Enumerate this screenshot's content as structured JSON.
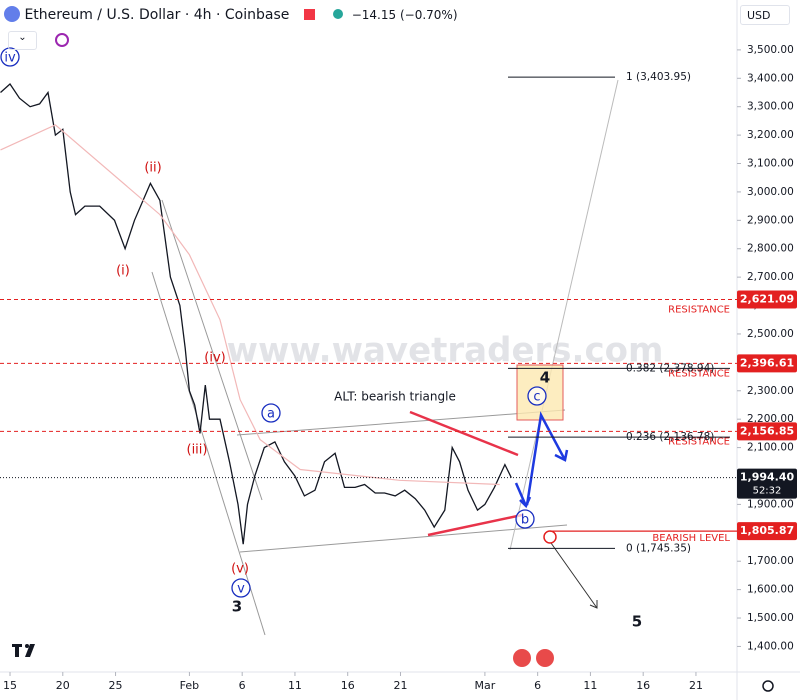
{
  "header": {
    "symbol": "Ethereum / U.S. Dollar · 4h · Coinbase",
    "change": "−14.15 (−0.70%)",
    "currency": "USD"
  },
  "watermark": "www.wavetraders.com",
  "chart_data": {
    "type": "line",
    "series": [
      {
        "color": "#131722",
        "x": [
          -0.9,
          0,
          0.9,
          1.9,
          2.8,
          3.6,
          4.3,
          5,
          5.7,
          6.2,
          7.1,
          8.5,
          9.9,
          10.9,
          11.8,
          13.3,
          14.2,
          15.2,
          16.1,
          16.6,
          17,
          17.5,
          18,
          18.5,
          18.9,
          19.9,
          20.8,
          21.6,
          22.1,
          22.5,
          23.2,
          24.1,
          25.1,
          26,
          27,
          27.9,
          28.9,
          29.8,
          30.8,
          31.7,
          32.7,
          33.6,
          34.6,
          35.5,
          36.5,
          37.4,
          38.4,
          39.3,
          40.2,
          41.2,
          41.9,
          42.6,
          43.4,
          44.3,
          45,
          45.9,
          46.9,
          47.5
        ],
        "values": [
          3350,
          3380,
          3330,
          3300,
          3310,
          3350,
          3200,
          3220,
          3000,
          2920,
          2950,
          2950,
          2900,
          2800,
          2900,
          3030,
          2970,
          2700,
          2600,
          2450,
          2300,
          2250,
          2150,
          2320,
          2200,
          2200,
          2050,
          1900,
          1760,
          1900,
          2000,
          2100,
          2120,
          2050,
          2000,
          1930,
          1950,
          2050,
          2080,
          1960,
          1960,
          1970,
          1940,
          1940,
          1930,
          1950,
          1920,
          1880,
          1820,
          1880,
          2100,
          2050,
          1950,
          1880,
          1900,
          1960,
          2040,
          1994.4
        ]
      },
      {
        "color": "#f2b8b8",
        "x": [
          -0.9,
          4.3,
          14.2,
          17,
          19.9,
          21.8,
          23.7,
          27.5,
          36.9,
          46.4
        ],
        "values": [
          3148,
          3236,
          2920,
          2779,
          2550,
          2269,
          2128,
          2023,
          1985,
          1970
        ]
      }
    ],
    "xlim": [
      -0.95,
      68.7
    ],
    "ylim": [
      1310,
      3570
    ],
    "xticks": [
      {
        "value": 0,
        "label": "15"
      },
      {
        "value": 5,
        "label": "20"
      },
      {
        "value": 10,
        "label": "25"
      },
      {
        "value": 17,
        "label": "Feb"
      },
      {
        "value": 22,
        "label": "6"
      },
      {
        "value": 27,
        "label": "11"
      },
      {
        "value": 32,
        "label": "16"
      },
      {
        "value": 37,
        "label": "21"
      },
      {
        "value": 45,
        "label": "Mar"
      },
      {
        "value": 50,
        "label": "6"
      },
      {
        "value": 55,
        "label": "11"
      },
      {
        "value": 60,
        "label": "16"
      },
      {
        "value": 65,
        "label": "21"
      }
    ],
    "yticks": [
      {
        "value": 1400,
        "label": "1,400.00"
      },
      {
        "value": 1500,
        "label": "1,500.00"
      },
      {
        "value": 1600,
        "label": "1,600.00"
      },
      {
        "value": 1700,
        "label": "1,700.00"
      },
      {
        "value": 1800,
        "label": "1,800.00"
      },
      {
        "value": 1900,
        "label": "1,900.00"
      },
      {
        "value": 2000,
        "label": "2,000.00"
      },
      {
        "value": 2100,
        "label": "2,100.00"
      },
      {
        "value": 2200,
        "label": "2,200.00"
      },
      {
        "value": 2300,
        "label": "2,300.00"
      },
      {
        "value": 2400,
        "label": "2,400.00"
      },
      {
        "value": 2500,
        "label": "2,500.00"
      },
      {
        "value": 2600,
        "label": "2,600.00"
      },
      {
        "value": 2700,
        "label": "2,700.00"
      },
      {
        "value": 2800,
        "label": "2,800.00"
      },
      {
        "value": 2900,
        "label": "2,900.00"
      },
      {
        "value": 3000,
        "label": "3,000.00"
      },
      {
        "value": 3100,
        "label": "3,100.00"
      },
      {
        "value": 3200,
        "label": "3,200.00"
      },
      {
        "value": 3300,
        "label": "3,300.00"
      },
      {
        "value": 3400,
        "label": "3,400.00"
      },
      {
        "value": 3500,
        "label": "3,500.00"
      }
    ],
    "levels": [
      {
        "value": 2621.09,
        "label": "2,621.09",
        "text": "RESISTANCE",
        "dashed": true
      },
      {
        "value": 2396.61,
        "label": "2,396.61",
        "text": "RESISTANCE",
        "dashed": true
      },
      {
        "value": 2156.85,
        "label": "2,156.85",
        "text": "RESISTANCE",
        "dashed": true
      },
      {
        "value": 1805.87,
        "label": "1,805.87",
        "text": "BEARISH LEVEL",
        "dashed": false
      }
    ],
    "last_price": {
      "value": 1994.4,
      "label": "1,994.40",
      "countdown": "52:32"
    },
    "fib": [
      {
        "value": 3403.95,
        "label": "1 (3,403.95)"
      },
      {
        "value": 2378.94,
        "label": "0.382 (2,378.94)"
      },
      {
        "value": 2136.78,
        "label": "0.236 (2,136.78)"
      },
      {
        "value": 1745.35,
        "label": "0 (1,745.35)"
      }
    ],
    "annotation": "ALT: bearish triangle",
    "waves": [
      {
        "text": "iv",
        "color": "#1a2fc0",
        "circle": true
      },
      {
        "text": "(ii)",
        "color": "#d01010",
        "circle": false
      },
      {
        "text": "(i)",
        "color": "#d01010",
        "circle": false
      },
      {
        "text": "(iv)",
        "color": "#d01010",
        "circle": false
      },
      {
        "text": "(iii)",
        "color": "#d01010",
        "circle": false
      },
      {
        "text": "(v)",
        "color": "#d01010",
        "circle": false
      },
      {
        "text": "v",
        "color": "#1a2fc0",
        "circle": true
      },
      {
        "text": "3",
        "color": "#131722",
        "circle": false
      },
      {
        "text": "a",
        "color": "#1a2fc0",
        "circle": true
      },
      {
        "text": "b",
        "color": "#1a2fc0",
        "circle": true
      },
      {
        "text": "c",
        "color": "#1a2fc0",
        "circle": true
      },
      {
        "text": "4",
        "color": "#131722",
        "circle": false
      },
      {
        "text": "5",
        "color": "#131722",
        "circle": false
      }
    ]
  }
}
